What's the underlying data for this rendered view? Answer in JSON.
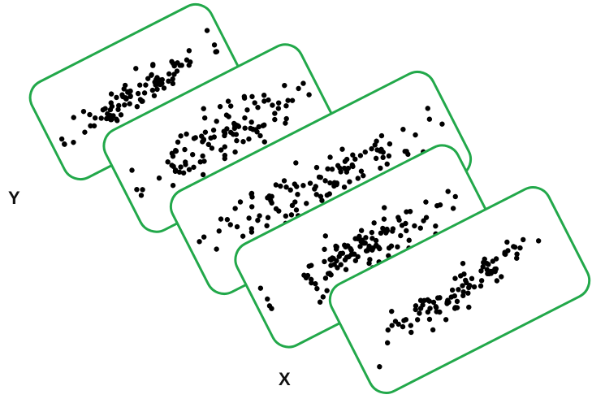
{
  "axis_labels": {
    "y": "Y",
    "x": "X"
  },
  "colors": {
    "band_stroke": "#22a84a",
    "point": "#000000",
    "background": "#ffffff"
  },
  "bands": [
    {
      "name": "band-1"
    },
    {
      "name": "band-2"
    },
    {
      "name": "band-3"
    },
    {
      "name": "band-4"
    },
    {
      "name": "band-5"
    }
  ]
}
